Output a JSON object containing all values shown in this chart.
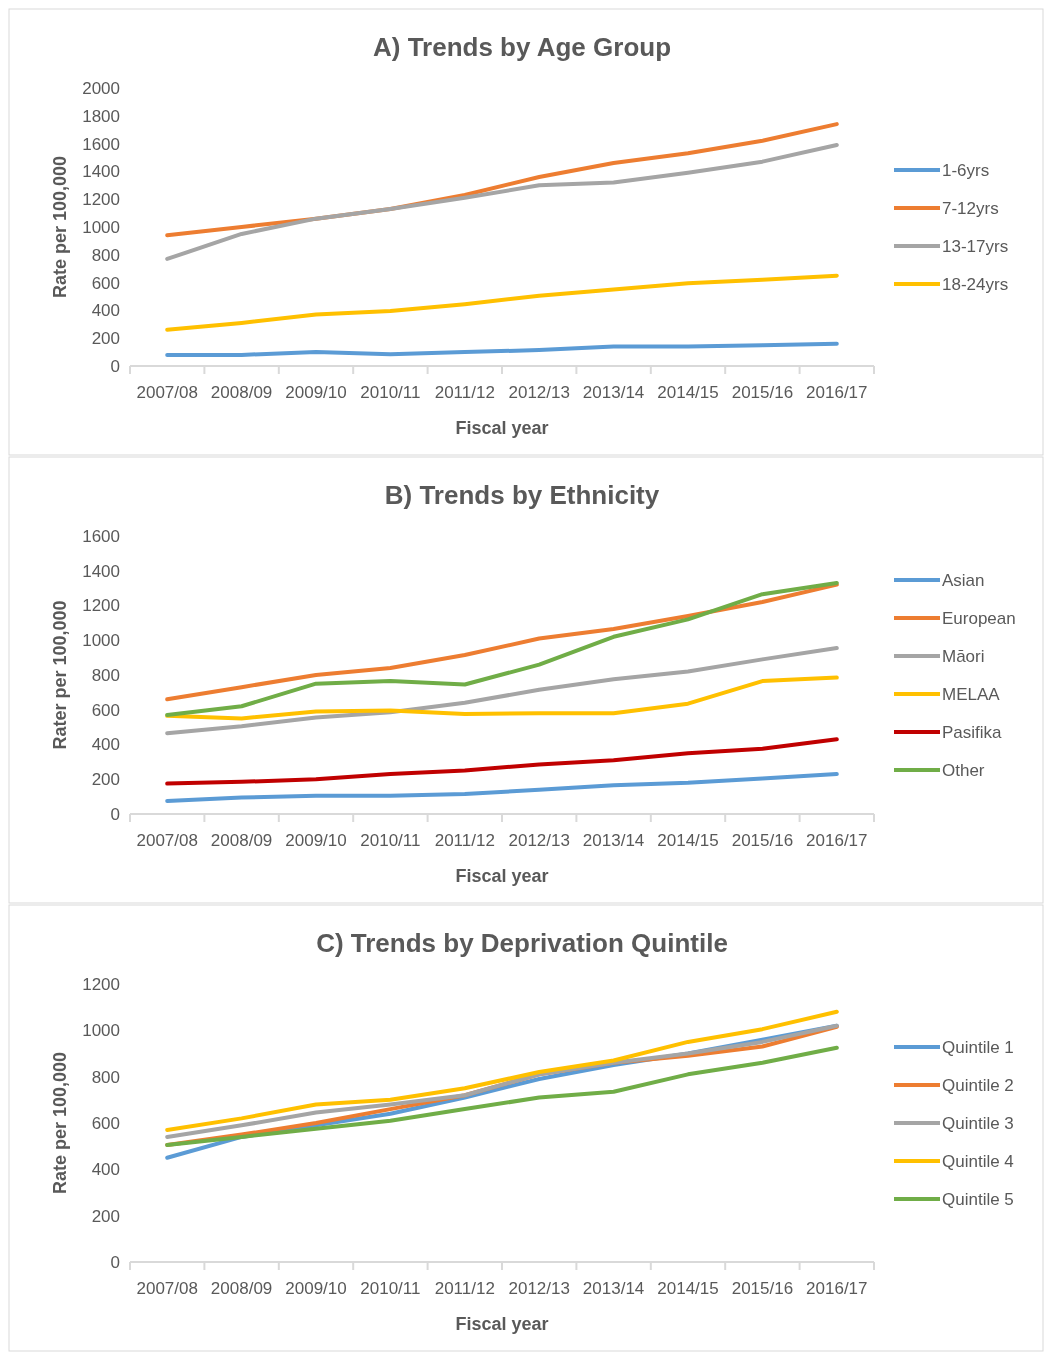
{
  "chart_data": [
    {
      "type": "line",
      "title": "A) Trends by Age Group",
      "xlabel": "Fiscal year",
      "ylabel": "Rate per 100,000",
      "categories": [
        "2007/08",
        "2008/09",
        "2009/10",
        "2010/11",
        "2011/12",
        "2012/13",
        "2013/14",
        "2014/15",
        "2015/16",
        "2016/17"
      ],
      "ylim": [
        0,
        2000
      ],
      "yticks": [
        0,
        200,
        400,
        600,
        800,
        1000,
        1200,
        1400,
        1600,
        1800,
        2000
      ],
      "grid": false,
      "legend": "right",
      "series": [
        {
          "name": "1-6yrs",
          "color": "#5b9bd5",
          "values": [
            80,
            80,
            100,
            85,
            100,
            115,
            140,
            140,
            150,
            160
          ]
        },
        {
          "name": "7-12yrs",
          "color": "#ed7d31",
          "values": [
            940,
            1000,
            1060,
            1130,
            1230,
            1360,
            1460,
            1530,
            1620,
            1740
          ]
        },
        {
          "name": "13-17yrs",
          "color": "#a5a5a5",
          "values": [
            770,
            950,
            1060,
            1130,
            1210,
            1300,
            1320,
            1390,
            1470,
            1590
          ]
        },
        {
          "name": "18-24yrs",
          "color": "#ffc000",
          "values": [
            260,
            310,
            370,
            395,
            445,
            505,
            550,
            595,
            620,
            650
          ]
        }
      ]
    },
    {
      "type": "line",
      "title": "B) Trends by Ethnicity",
      "xlabel": "Fiscal year",
      "ylabel": "Rater per 100,000",
      "categories": [
        "2007/08",
        "2008/09",
        "2009/10",
        "2010/11",
        "2011/12",
        "2012/13",
        "2013/14",
        "2014/15",
        "2015/16",
        "2016/17"
      ],
      "ylim": [
        0,
        1600
      ],
      "yticks": [
        0,
        200,
        400,
        600,
        800,
        1000,
        1200,
        1400,
        1600
      ],
      "grid": false,
      "legend": "right",
      "series": [
        {
          "name": "Asian",
          "color": "#5b9bd5",
          "values": [
            75,
            95,
            105,
            105,
            115,
            140,
            165,
            180,
            205,
            230
          ]
        },
        {
          "name": "European",
          "color": "#ed7d31",
          "values": [
            660,
            730,
            800,
            840,
            915,
            1010,
            1065,
            1140,
            1220,
            1320
          ]
        },
        {
          "name": "Māori",
          "color": "#a5a5a5",
          "values": [
            465,
            505,
            555,
            585,
            640,
            715,
            775,
            820,
            890,
            955
          ]
        },
        {
          "name": "MELAA",
          "color": "#ffc000",
          "values": [
            565,
            550,
            590,
            595,
            575,
            580,
            580,
            635,
            765,
            785
          ]
        },
        {
          "name": "Pasifika",
          "color": "#c00000",
          "values": [
            175,
            185,
            200,
            230,
            250,
            285,
            310,
            350,
            375,
            430
          ]
        },
        {
          "name": "Other",
          "color": "#70ad47",
          "values": [
            570,
            620,
            750,
            765,
            745,
            860,
            1020,
            1120,
            1265,
            1330
          ]
        }
      ]
    },
    {
      "type": "line",
      "title": "C) Trends by Deprivation Quintile",
      "xlabel": "Fiscal year",
      "ylabel": "Rate per 100,000",
      "categories": [
        "2007/08",
        "2008/09",
        "2009/10",
        "2010/11",
        "2011/12",
        "2012/13",
        "2013/14",
        "2014/15",
        "2015/16",
        "2016/17"
      ],
      "ylim": [
        0,
        1200
      ],
      "yticks": [
        0,
        200,
        400,
        600,
        800,
        1000,
        1200
      ],
      "grid": false,
      "legend": "right",
      "series": [
        {
          "name": "Quintile 1",
          "color": "#5b9bd5",
          "values": [
            450,
            540,
            590,
            640,
            710,
            790,
            850,
            900,
            960,
            1020
          ]
        },
        {
          "name": "Quintile 2",
          "color": "#ed7d31",
          "values": [
            505,
            550,
            600,
            660,
            720,
            810,
            860,
            890,
            930,
            1015
          ]
        },
        {
          "name": "Quintile 3",
          "color": "#a5a5a5",
          "values": [
            540,
            590,
            645,
            680,
            720,
            810,
            860,
            900,
            950,
            1020
          ]
        },
        {
          "name": "Quintile 4",
          "color": "#ffc000",
          "values": [
            570,
            620,
            680,
            700,
            750,
            820,
            870,
            950,
            1005,
            1080
          ]
        },
        {
          "name": "Quintile 5",
          "color": "#70ad47",
          "values": [
            505,
            540,
            575,
            610,
            660,
            710,
            735,
            810,
            860,
            925
          ]
        }
      ]
    }
  ]
}
